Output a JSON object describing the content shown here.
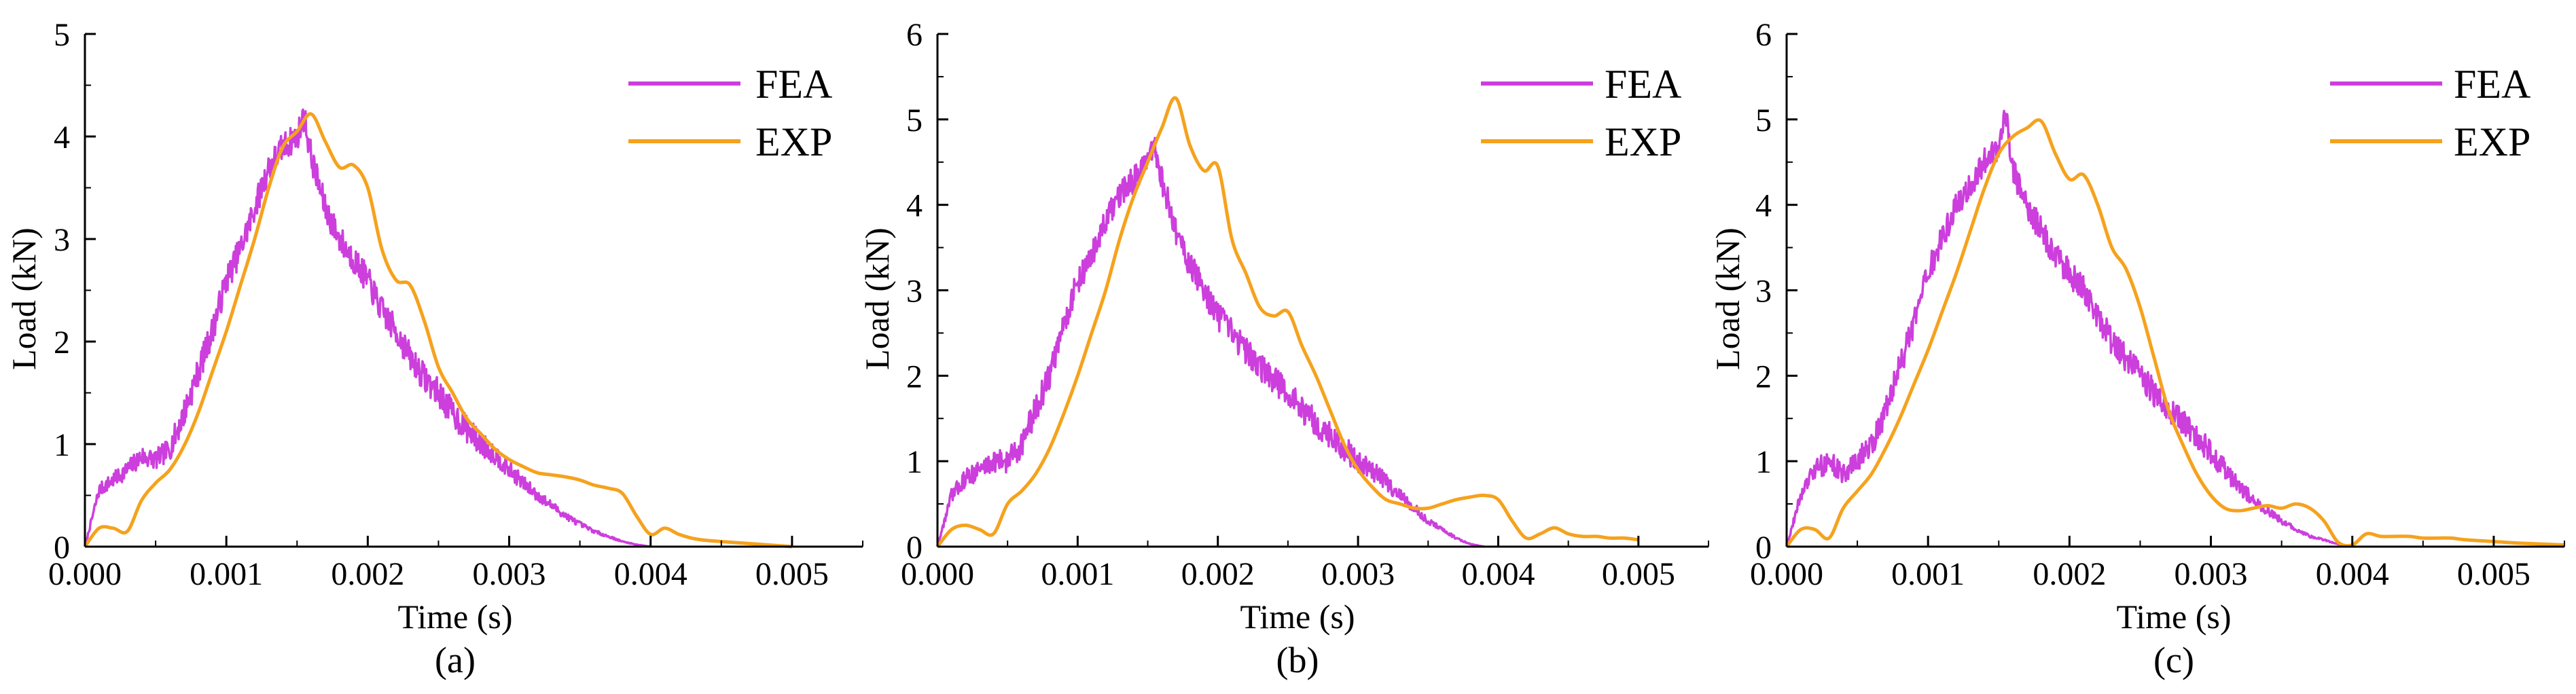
{
  "colors": {
    "fea": "#cc3fdc",
    "exp": "#f5a21d",
    "axis": "#000000"
  },
  "chart_data": [
    {
      "type": "line",
      "panel_label": "(a)",
      "xlabel": "Time (s)",
      "ylabel": "Load (kN)",
      "xlim": [
        0,
        0.0055
      ],
      "ylim": [
        0,
        5
      ],
      "xticks": [
        "0.000",
        "0.001",
        "0.002",
        "0.003",
        "0.004",
        "0.005"
      ],
      "xtick_values": [
        0,
        0.001,
        0.002,
        0.003,
        0.004,
        0.005
      ],
      "yticks": [
        "0",
        "1",
        "2",
        "3",
        "4",
        "5"
      ],
      "ytick_values": [
        0,
        1,
        2,
        3,
        4,
        5
      ],
      "legend": [
        "FEA",
        "EXP"
      ],
      "series": [
        {
          "name": "FEA",
          "noise": 0.14,
          "x": [
            0,
            0.0001,
            0.0002,
            0.0003,
            0.0004,
            0.0005,
            0.0006,
            0.0007,
            0.0008,
            0.0009,
            0.001,
            0.0011,
            0.0012,
            0.0013,
            0.0014,
            0.0015,
            0.00155,
            0.0016,
            0.0017,
            0.0018,
            0.0019,
            0.002,
            0.0021,
            0.0022,
            0.0023,
            0.0024,
            0.0025,
            0.0026,
            0.0027,
            0.0028,
            0.0029,
            0.003,
            0.0031,
            0.0032,
            0.0033,
            0.0034,
            0.0035,
            0.0036,
            0.0037,
            0.0038,
            0.0039,
            0.004
          ],
          "y": [
            0,
            0.55,
            0.65,
            0.75,
            0.88,
            0.85,
            0.95,
            1.3,
            1.7,
            2.1,
            2.6,
            2.9,
            3.3,
            3.7,
            3.9,
            4.0,
            4.2,
            3.8,
            3.3,
            3.0,
            2.8,
            2.6,
            2.3,
            2.1,
            1.85,
            1.65,
            1.5,
            1.3,
            1.15,
            1.0,
            0.9,
            0.75,
            0.62,
            0.5,
            0.4,
            0.3,
            0.22,
            0.15,
            0.1,
            0.05,
            0.02,
            0
          ]
        },
        {
          "name": "EXP",
          "noise": 0,
          "x": [
            0,
            0.0001,
            0.0002,
            0.0003,
            0.0004,
            0.0005,
            0.0006,
            0.0007,
            0.0008,
            0.0009,
            0.001,
            0.0011,
            0.0012,
            0.0013,
            0.0014,
            0.0015,
            0.0016,
            0.0017,
            0.0018,
            0.0019,
            0.002,
            0.0021,
            0.0022,
            0.0023,
            0.0024,
            0.0025,
            0.0026,
            0.0027,
            0.0028,
            0.0029,
            0.003,
            0.0031,
            0.0032,
            0.0033,
            0.0034,
            0.0035,
            0.0036,
            0.0037,
            0.0038,
            0.0039,
            0.004,
            0.0041,
            0.0042,
            0.0043,
            0.0044,
            0.0045,
            0.0046,
            0.0047,
            0.0048,
            0.0049,
            0.005
          ],
          "y": [
            0,
            0.18,
            0.18,
            0.15,
            0.45,
            0.62,
            0.75,
            0.98,
            1.3,
            1.7,
            2.1,
            2.55,
            3.0,
            3.5,
            3.9,
            4.05,
            4.22,
            3.95,
            3.7,
            3.72,
            3.5,
            2.9,
            2.6,
            2.55,
            2.2,
            1.75,
            1.5,
            1.25,
            1.1,
            0.95,
            0.85,
            0.78,
            0.72,
            0.7,
            0.68,
            0.65,
            0.6,
            0.57,
            0.52,
            0.3,
            0.12,
            0.18,
            0.12,
            0.08,
            0.06,
            0.05,
            0.04,
            0.03,
            0.02,
            0.01,
            0
          ]
        }
      ]
    },
    {
      "type": "line",
      "panel_label": "(b)",
      "xlabel": "Time (s)",
      "ylabel": "Load (kN)",
      "xlim": [
        0,
        0.0055
      ],
      "ylim": [
        0,
        6
      ],
      "xticks": [
        "0.000",
        "0.001",
        "0.002",
        "0.003",
        "0.004",
        "0.005"
      ],
      "xtick_values": [
        0,
        0.001,
        0.002,
        0.003,
        0.004,
        0.005
      ],
      "yticks": [
        "0",
        "1",
        "2",
        "3",
        "4",
        "5",
        "6"
      ],
      "ytick_values": [
        0,
        1,
        2,
        3,
        4,
        5,
        6
      ],
      "legend": [
        "FEA",
        "EXP"
      ],
      "series": [
        {
          "name": "FEA",
          "noise": 0.16,
          "x": [
            0,
            0.0001,
            0.0002,
            0.0003,
            0.0004,
            0.0005,
            0.0006,
            0.0007,
            0.0008,
            0.0009,
            0.001,
            0.0011,
            0.0012,
            0.0013,
            0.0014,
            0.0015,
            0.00155,
            0.0016,
            0.0017,
            0.0018,
            0.0019,
            0.002,
            0.0021,
            0.0022,
            0.0023,
            0.0024,
            0.0025,
            0.0026,
            0.0027,
            0.0028,
            0.0029,
            0.003,
            0.0031,
            0.0032,
            0.0033,
            0.0034,
            0.0035,
            0.0036,
            0.0037,
            0.0038,
            0.0039
          ],
          "y": [
            0,
            0.6,
            0.8,
            0.9,
            1.0,
            1.0,
            1.2,
            1.6,
            2.0,
            2.6,
            3.1,
            3.4,
            3.8,
            4.1,
            4.3,
            4.5,
            4.65,
            4.3,
            3.7,
            3.3,
            3.0,
            2.7,
            2.5,
            2.3,
            2.1,
            1.95,
            1.8,
            1.6,
            1.45,
            1.3,
            1.15,
            1.0,
            0.9,
            0.75,
            0.6,
            0.45,
            0.3,
            0.2,
            0.1,
            0.03,
            0
          ]
        },
        {
          "name": "EXP",
          "noise": 0,
          "x": [
            0,
            0.0001,
            0.0002,
            0.0003,
            0.0004,
            0.0005,
            0.0006,
            0.0007,
            0.0008,
            0.0009,
            0.001,
            0.0011,
            0.0012,
            0.0013,
            0.0014,
            0.0015,
            0.0016,
            0.0017,
            0.0018,
            0.0019,
            0.002,
            0.0021,
            0.0022,
            0.0023,
            0.0024,
            0.0025,
            0.0026,
            0.0027,
            0.0028,
            0.0029,
            0.003,
            0.0031,
            0.0032,
            0.0033,
            0.0034,
            0.0035,
            0.0036,
            0.0037,
            0.0038,
            0.0039,
            0.004,
            0.0041,
            0.0042,
            0.0043,
            0.0044,
            0.0045,
            0.0046,
            0.0047,
            0.0048,
            0.0049,
            0.005
          ],
          "y": [
            0,
            0.2,
            0.25,
            0.2,
            0.15,
            0.5,
            0.65,
            0.85,
            1.15,
            1.55,
            2.0,
            2.5,
            3.0,
            3.6,
            4.1,
            4.5,
            4.9,
            5.25,
            4.7,
            4.4,
            4.45,
            3.6,
            3.2,
            2.8,
            2.7,
            2.75,
            2.35,
            2.0,
            1.6,
            1.2,
            0.9,
            0.7,
            0.55,
            0.5,
            0.45,
            0.45,
            0.5,
            0.55,
            0.58,
            0.6,
            0.55,
            0.3,
            0.1,
            0.15,
            0.22,
            0.15,
            0.12,
            0.12,
            0.1,
            0.1,
            0.08
          ]
        }
      ]
    },
    {
      "type": "line",
      "panel_label": "(c)",
      "xlabel": "Time (s)",
      "ylabel": "Load (kN)",
      "xlim": [
        0,
        0.0055
      ],
      "ylim": [
        0,
        6
      ],
      "xticks": [
        "0.000",
        "0.001",
        "0.002",
        "0.003",
        "0.004",
        "0.005"
      ],
      "xtick_values": [
        0,
        0.001,
        0.002,
        0.003,
        0.004,
        0.005
      ],
      "yticks": [
        "0",
        "1",
        "2",
        "3",
        "4",
        "5",
        "6"
      ],
      "ytick_values": [
        0,
        1,
        2,
        3,
        4,
        5,
        6
      ],
      "legend": [
        "FEA",
        "EXP"
      ],
      "series": [
        {
          "name": "FEA",
          "noise": 0.16,
          "x": [
            0,
            0.0001,
            0.0002,
            0.0003,
            0.0004,
            0.0005,
            0.0006,
            0.0007,
            0.0008,
            0.0009,
            0.001,
            0.0011,
            0.0012,
            0.0013,
            0.0014,
            0.0015,
            0.00155,
            0.0016,
            0.0017,
            0.0018,
            0.0019,
            0.002,
            0.0021,
            0.0022,
            0.0023,
            0.0024,
            0.0025,
            0.0026,
            0.0027,
            0.0028,
            0.0029,
            0.003,
            0.0031,
            0.0032,
            0.0033,
            0.0034,
            0.0035,
            0.0036,
            0.0037,
            0.0038,
            0.0039,
            0.004
          ],
          "y": [
            0,
            0.6,
            0.9,
            1.0,
            0.85,
            1.0,
            1.2,
            1.6,
            2.1,
            2.6,
            3.2,
            3.6,
            4.0,
            4.2,
            4.5,
            4.7,
            5.1,
            4.4,
            4.0,
            3.7,
            3.4,
            3.2,
            3.0,
            2.7,
            2.4,
            2.2,
            2.0,
            1.8,
            1.6,
            1.45,
            1.3,
            1.1,
            0.9,
            0.7,
            0.55,
            0.42,
            0.3,
            0.2,
            0.12,
            0.08,
            0.03,
            0
          ]
        },
        {
          "name": "EXP",
          "noise": 0,
          "x": [
            0,
            0.0001,
            0.0002,
            0.0003,
            0.0004,
            0.0005,
            0.0006,
            0.0007,
            0.0008,
            0.0009,
            0.001,
            0.0011,
            0.0012,
            0.0013,
            0.0014,
            0.0015,
            0.0016,
            0.0017,
            0.0018,
            0.0019,
            0.002,
            0.0021,
            0.0022,
            0.0023,
            0.0024,
            0.0025,
            0.0026,
            0.0027,
            0.0028,
            0.0029,
            0.003,
            0.0031,
            0.0032,
            0.0033,
            0.0034,
            0.0035,
            0.0036,
            0.0037,
            0.0038,
            0.0039,
            0.004,
            0.0041,
            0.0042,
            0.0043,
            0.0044,
            0.0045,
            0.0046,
            0.0047,
            0.0048,
            0.005,
            0.0052,
            0.0055
          ],
          "y": [
            0,
            0.2,
            0.2,
            0.1,
            0.45,
            0.65,
            0.85,
            1.15,
            1.5,
            1.9,
            2.3,
            2.75,
            3.2,
            3.7,
            4.2,
            4.6,
            4.8,
            4.9,
            4.98,
            4.6,
            4.3,
            4.35,
            4.0,
            3.5,
            3.25,
            2.8,
            2.2,
            1.6,
            1.2,
            0.85,
            0.6,
            0.45,
            0.42,
            0.45,
            0.48,
            0.45,
            0.5,
            0.45,
            0.3,
            0.05,
            0.02,
            0.15,
            0.12,
            0.12,
            0.12,
            0.1,
            0.1,
            0.1,
            0.08,
            0.06,
            0.04,
            0.02
          ]
        }
      ]
    }
  ]
}
